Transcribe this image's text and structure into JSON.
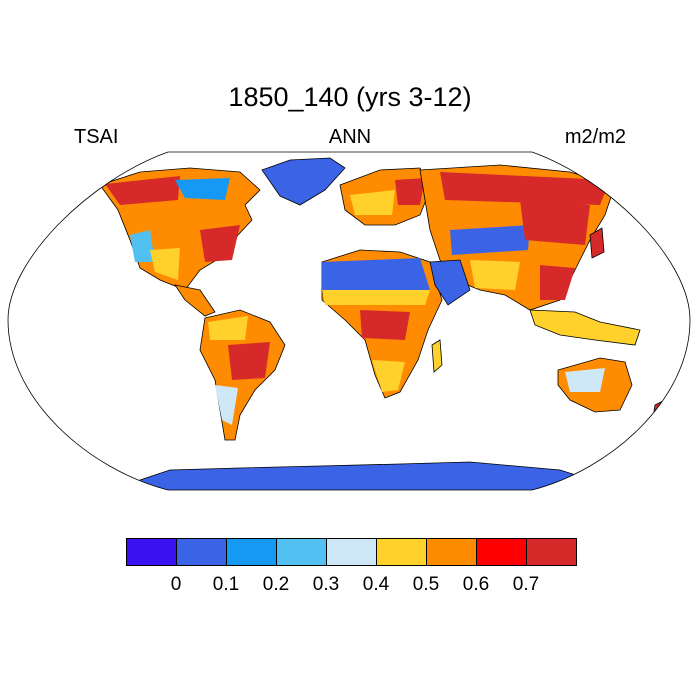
{
  "title": "1850_140 (yrs 3-12)",
  "left_string": "TSAI",
  "center_string": "ANN",
  "right_string": "m2/m2",
  "colorbar": {
    "colors": [
      "#3a12f2",
      "#3b63e6",
      "#1599f5",
      "#52c1f2",
      "#cfe8f7",
      "#ffd12a",
      "#ff8c00",
      "#ff0000",
      "#d62a2a"
    ],
    "labels": [
      "0",
      "0.1",
      "0.2",
      "0.3",
      "0.4",
      "0.5",
      "0.6",
      "0.7"
    ]
  },
  "map": {
    "projection": "robinson",
    "ocean_color": "#ffffff",
    "border_color": "#000000"
  }
}
